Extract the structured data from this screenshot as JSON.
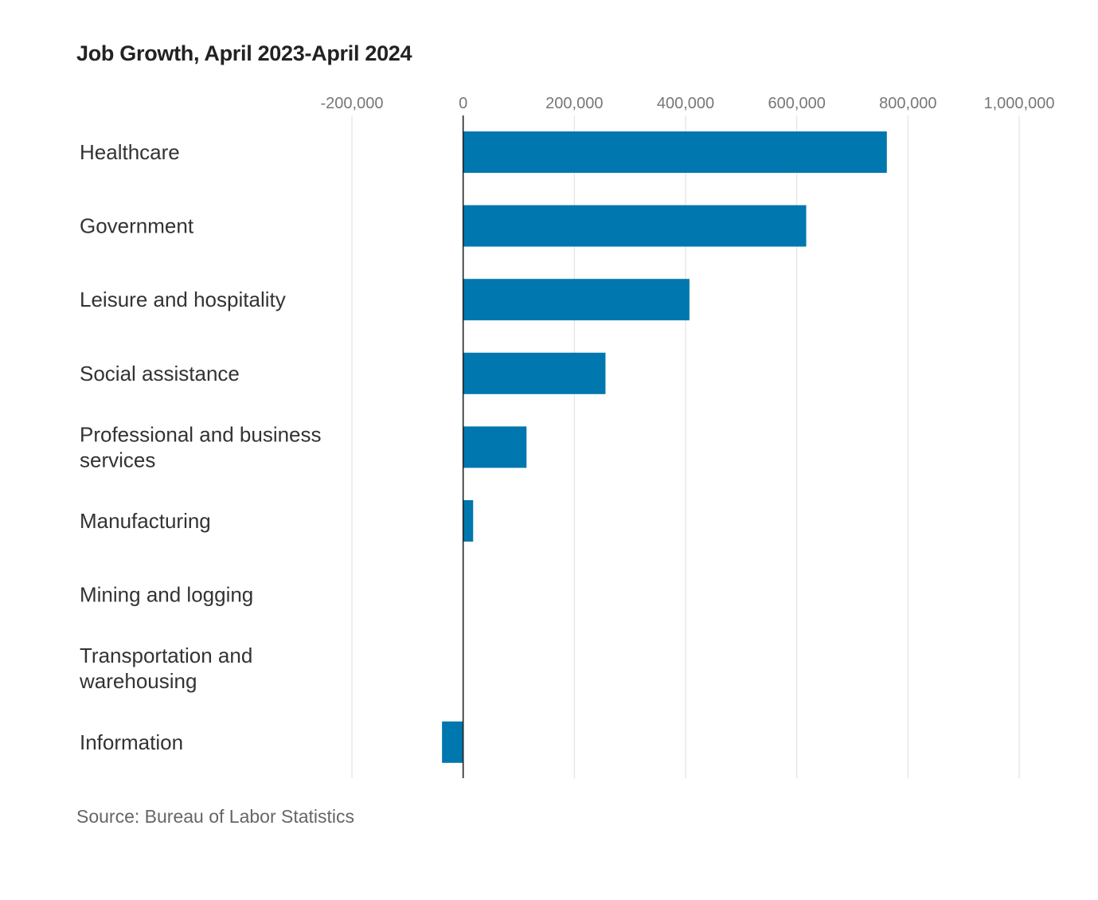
{
  "chart_data": {
    "type": "bar",
    "orientation": "horizontal",
    "title": "Job Growth, April 2023-April 2024",
    "source": "Source: Bureau of Labor Statistics",
    "categories": [
      "Healthcare",
      "Government",
      "Leisure and hospitality",
      "Social assistance",
      "Professional and business services",
      "Manufacturing",
      "Mining and logging",
      "Transportation and warehousing",
      "Information"
    ],
    "values": [
      762000,
      617000,
      407000,
      256000,
      114000,
      18000,
      0,
      0,
      -38000
    ],
    "xlim": [
      -200000,
      1000000
    ],
    "xticks": [
      -200000,
      0,
      200000,
      400000,
      600000,
      800000,
      1000000
    ],
    "xtick_labels": [
      "-200,000",
      "0",
      "200,000",
      "400,000",
      "600,000",
      "800,000",
      "1,000,000"
    ],
    "xaxis_position": "top",
    "grid": true,
    "colors": {
      "bar": "#0077AE",
      "grid": "#e3e3e3",
      "zero_line": "#222222",
      "category_text": "#333333",
      "tick_text": "#777777"
    }
  }
}
